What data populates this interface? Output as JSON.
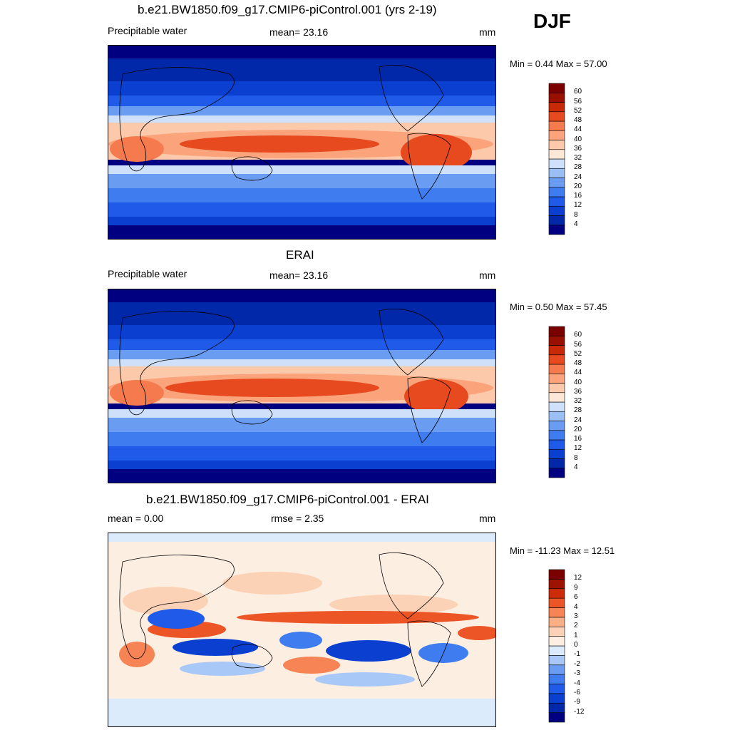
{
  "season": "DJF",
  "chart_data": [
    {
      "type": "heatmap",
      "title": "b.e21.BW1850.f09_g17.CMIP6-piControl.001 (yrs 2-19)",
      "left_label": "Precipitable water",
      "center_label": "mean=  23.16",
      "right_label": "mm",
      "stats": "Min =   0.44 Max =  57.00",
      "levels": [
        "4",
        "8",
        "12",
        "16",
        "20",
        "24",
        "28",
        "32",
        "36",
        "40",
        "44",
        "48",
        "52",
        "56",
        "60"
      ],
      "colors": [
        "#000080",
        "#0028a8",
        "#0a3fd0",
        "#1f5be8",
        "#3e7cf0",
        "#6a9cf2",
        "#9bbff5",
        "#cfe0fa",
        "#fde8d8",
        "#fcc9aa",
        "#fba47c",
        "#f57a4e",
        "#e84a20",
        "#c82a08",
        "#9a1000",
        "#7a0000"
      ]
    },
    {
      "type": "heatmap",
      "title": "ERAI",
      "left_label": "Precipitable water",
      "center_label": "mean=  23.16",
      "right_label": "mm",
      "stats": "Min =   0.50 Max =  57.45",
      "levels": [
        "4",
        "8",
        "12",
        "16",
        "20",
        "24",
        "28",
        "32",
        "36",
        "40",
        "44",
        "48",
        "52",
        "56",
        "60"
      ],
      "colors": [
        "#000080",
        "#0028a8",
        "#0a3fd0",
        "#1f5be8",
        "#3e7cf0",
        "#6a9cf2",
        "#9bbff5",
        "#cfe0fa",
        "#fde8d8",
        "#fcc9aa",
        "#fba47c",
        "#f57a4e",
        "#e84a20",
        "#c82a08",
        "#9a1000",
        "#7a0000"
      ]
    },
    {
      "type": "heatmap",
      "title": "b.e21.BW1850.f09_g17.CMIP6-piControl.001 - ERAI",
      "left_label": "mean =   0.00",
      "center_label": "rmse =   2.35",
      "right_label": "mm",
      "stats": "Min = -11.23 Max =  12.51",
      "levels": [
        "-12",
        "-9",
        "-6",
        "-4",
        "-3",
        "-2",
        "-1",
        "0",
        "1",
        "2",
        "3",
        "4",
        "6",
        "9",
        "12"
      ],
      "colors": [
        "#000080",
        "#0028a8",
        "#0a3fd0",
        "#1f5be8",
        "#3e7cf0",
        "#6a9cf2",
        "#a8c8f8",
        "#dcebfc",
        "#fdeee2",
        "#fcd2b6",
        "#fbaf86",
        "#f78455",
        "#ec5526",
        "#cc2c08",
        "#9e1200",
        "#7a0000"
      ]
    }
  ]
}
